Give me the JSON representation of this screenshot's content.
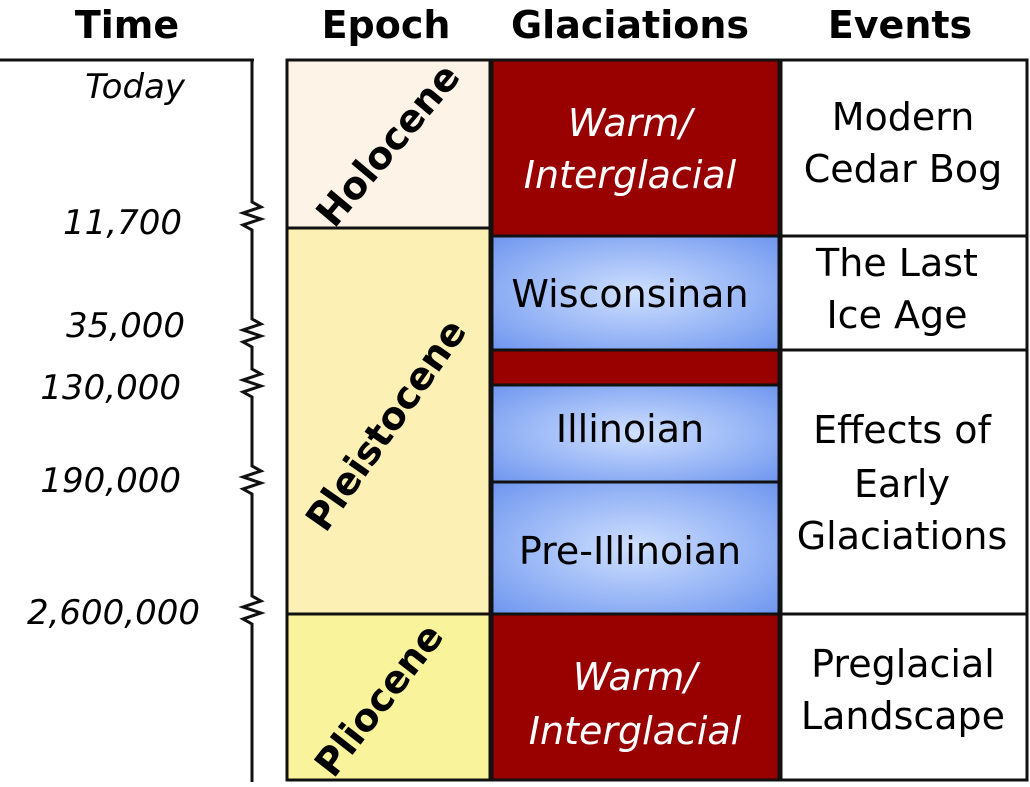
{
  "headers": {
    "time": "Time",
    "epoch": "Epoch",
    "glaciations": "Glaciations",
    "events": "Events"
  },
  "times": [
    "Today",
    "11,700",
    "35,000",
    "130,000",
    "190,000",
    "2,600,000"
  ],
  "epochs": [
    {
      "name": "Holocene",
      "color": "#fdf3e6"
    },
    {
      "name": "Pleistocene",
      "color": "#fcf0b4"
    },
    {
      "name": "Pliocene",
      "color": "#f9f49b"
    }
  ],
  "glaciations": [
    {
      "lines": [
        "Warm/",
        "Interglacial"
      ],
      "kind": "warm"
    },
    {
      "lines": [
        "Wisconsinan"
      ],
      "kind": "cold"
    },
    {
      "lines": [],
      "kind": "warm"
    },
    {
      "lines": [
        "Illinoian"
      ],
      "kind": "cold"
    },
    {
      "lines": [
        "Pre-Illinoian"
      ],
      "kind": "cold"
    },
    {
      "lines": [
        "Warm/",
        "Interglacial"
      ],
      "kind": "warm"
    }
  ],
  "events": [
    {
      "lines": [
        "Modern",
        "Cedar Bog"
      ]
    },
    {
      "lines": [
        "The Last",
        "Ice Age"
      ]
    },
    {
      "lines": [
        "Effects of",
        "Early",
        "Glaciations"
      ]
    },
    {
      "lines": [
        "Preglacial",
        "Landscape"
      ]
    }
  ],
  "colors": {
    "warm": "#990000",
    "cold_center": "#cfe0ff",
    "cold_edge": "#6f96ef",
    "line": "#111111"
  }
}
